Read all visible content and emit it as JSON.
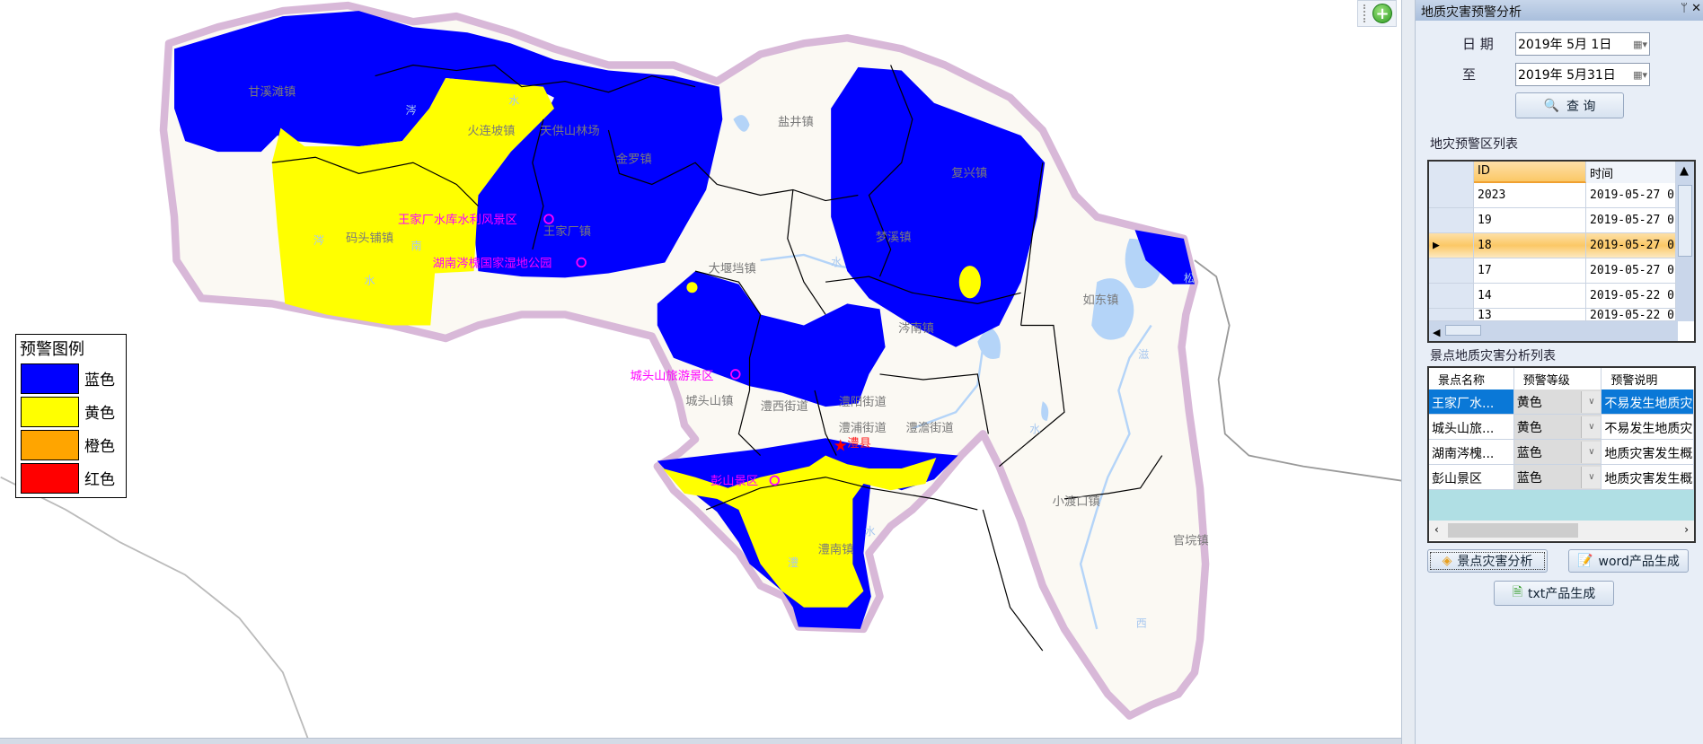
{
  "map": {
    "colors": {
      "blue": "#0000ff",
      "yellow": "#ffff00",
      "orange": "#ffa500",
      "red": "#ff0000",
      "land": "#fbf9f3",
      "water": "#b4d4f8",
      "halo": "#d8b8d8"
    },
    "towns": [
      "甘溪滩镇",
      "火连坡镇",
      "天供山林场",
      "金罗镇",
      "盐井镇",
      "复兴镇",
      "码头铺镇",
      "王家厂镇",
      "梦溪镇",
      "大堰垱镇",
      "如东镇",
      "涔南镇",
      "城头山镇",
      "澧西街道",
      "澧阳街道",
      "澧浦街道",
      "澧澹街道",
      "澧南镇",
      "小渡口镇",
      "官垸镇"
    ],
    "county_seat": "澧县",
    "scenic_spots": [
      "王家厂水库水利风景区",
      "湖南涔槐国家湿地公园",
      "城头山旅游景区",
      "彭山景区"
    ],
    "rivers": [
      "涔",
      "水",
      "涔",
      "南",
      "水",
      "水",
      "澧",
      "水",
      "松",
      "滋",
      "西",
      "水",
      "道"
    ]
  },
  "legend": {
    "title": "预警图例",
    "items": [
      {
        "label": "蓝色",
        "color": "#0000ff"
      },
      {
        "label": "黄色",
        "color": "#ffff00"
      },
      {
        "label": "橙色",
        "color": "#ffa500"
      },
      {
        "label": "红色",
        "color": "#ff0000"
      }
    ]
  },
  "toolbar": {
    "icon": "zoom-in-plus-icon"
  },
  "panel": {
    "title": "地质灾害预警分析",
    "pin": "ᛘ",
    "close": "✕",
    "date_label": "日 期",
    "to_label": "至",
    "date_from": "2019年  5月  1日",
    "date_to": "2019年  5月31日",
    "query_button": "查  询",
    "warning_list_title": "地灾预警区列表",
    "warning_columns": [
      "ID",
      "时间"
    ],
    "warning_rows": [
      {
        "id": "2023",
        "time": "2019-05-27 0."
      },
      {
        "id": "19",
        "time": "2019-05-27 0."
      },
      {
        "id": "18",
        "time": "2019-05-27 0.",
        "selected": true
      },
      {
        "id": "17",
        "time": "2019-05-27 0."
      },
      {
        "id": "14",
        "time": "2019-05-22 0."
      },
      {
        "id": "13",
        "time": "2019-05-22 0."
      }
    ],
    "spot_list_title": "景点地质灾害分析列表",
    "spot_columns": [
      "景点名称",
      "预警等级",
      "预警说明"
    ],
    "spot_rows": [
      {
        "name": "王家厂水...",
        "level": "黄色",
        "desc": "不易发生地质灾"
      },
      {
        "name": "城头山旅...",
        "level": "黄色",
        "desc": "不易发生地质灾"
      },
      {
        "name": "湖南涔槐...",
        "level": "蓝色",
        "desc": "地质灾害发生概"
      },
      {
        "name": "彭山景区",
        "level": "蓝色",
        "desc": "地质灾害发生概"
      }
    ],
    "btn_analysis": "景点灾害分析",
    "btn_word": "word产品生成",
    "btn_txt": "txt产品生成"
  }
}
